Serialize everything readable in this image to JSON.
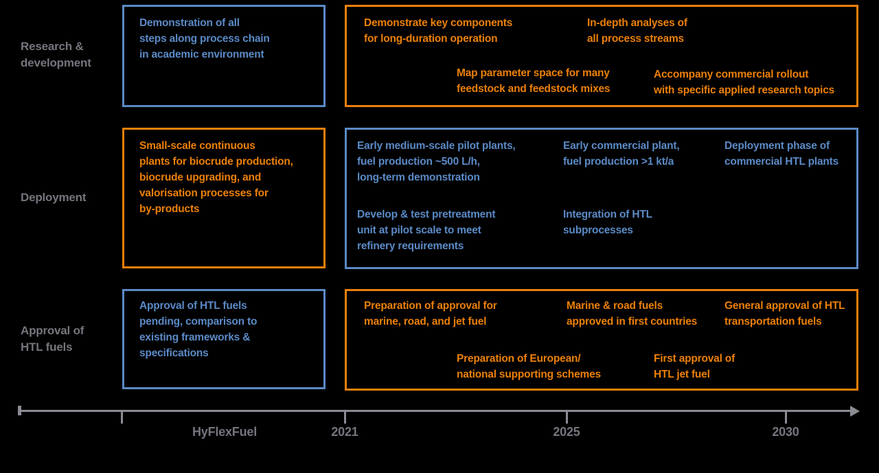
{
  "colors": {
    "blue": "#5b8ac6",
    "orange": "#ec8009",
    "label_gray": "#75757e",
    "axis_gray": "#8b8c94",
    "background": "#000000"
  },
  "rows": [
    {
      "label": "Research &\ndevelopment",
      "left_box": {
        "border_color": "blue",
        "text": "Demonstration of all\nsteps along process chain\nin academic environment"
      },
      "right_box": {
        "border_color": "orange",
        "notes": [
          "Demonstrate key components\nfor long-duration operation",
          "In-depth analyses of\nall process streams",
          "Map parameter space for many\nfeedstock and feedstock mixes",
          "Accompany commercial rollout\nwith specific applied research topics"
        ]
      }
    },
    {
      "label": "Deployment",
      "left_box": {
        "border_color": "orange",
        "text": "Small-scale continuous\nplants for biocrude production,\nbiocrude upgrading, and\nvalorisation processes for\nby-products"
      },
      "right_box": {
        "border_color": "blue",
        "notes": [
          "Early medium-scale pilot plants,\nfuel production ~500 L/h,\nlong-term demonstration",
          "Develop & test pretreatment\nunit at pilot scale to meet\nrefinery requirements",
          "Early commercial plant,\nfuel production >1 kt/a",
          "Integration of HTL\nsubprocesses",
          "Deployment phase of\ncommercial HTL plants"
        ]
      }
    },
    {
      "label": "Approval of\nHTL fuels",
      "left_box": {
        "border_color": "blue",
        "text": "Approval of HTL fuels\npending, comparison to\nexisting frameworks &\nspecifications"
      },
      "right_box": {
        "border_color": "orange",
        "notes": [
          "Preparation of approval for\nmarine, road, and jet fuel",
          "Preparation of European/\nnational supporting schemes",
          "Marine & road fuels\napproved in first countries",
          "First approval of\nHTL jet fuel",
          "General approval of HTL\ntransportation fuels"
        ]
      }
    }
  ],
  "timeline": {
    "project_label": "HyFlexFuel",
    "year_labels": [
      "2021",
      "2025",
      "2030"
    ]
  }
}
